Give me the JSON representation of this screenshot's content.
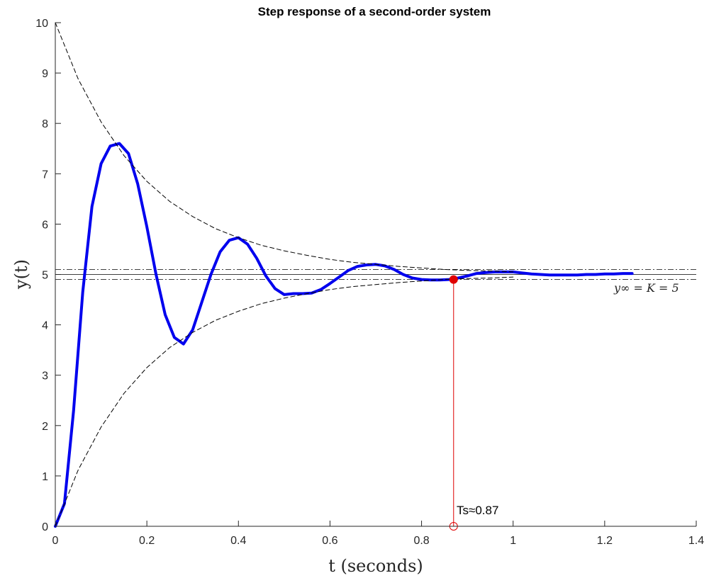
{
  "chart_data": {
    "type": "line",
    "title": "Step response of a second-order system",
    "xlabel": "t (seconds)",
    "ylabel": "y(t)",
    "xlim": [
      0,
      1.4
    ],
    "ylim": [
      0,
      10
    ],
    "xticks": [
      0,
      0.2,
      0.4,
      0.6,
      0.8,
      1,
      1.2,
      1.4
    ],
    "xtick_labels": [
      "0",
      "0.2",
      "0.4",
      "0.6",
      "0.8",
      "1",
      "1.2",
      "1.4"
    ],
    "yticks": [
      0,
      1,
      2,
      3,
      4,
      5,
      6,
      7,
      8,
      9,
      10
    ],
    "ytick_labels": [
      "0",
      "1",
      "2",
      "3",
      "4",
      "5",
      "6",
      "7",
      "8",
      "9",
      "10"
    ],
    "grid": false,
    "series": [
      {
        "style": "solid-thick",
        "color": "#0000ee",
        "x": [
          0,
          0.02,
          0.04,
          0.06,
          0.08,
          0.1,
          0.12,
          0.14,
          0.16,
          0.18,
          0.2,
          0.22,
          0.24,
          0.26,
          0.28,
          0.3,
          0.32,
          0.34,
          0.36,
          0.38,
          0.4,
          0.42,
          0.44,
          0.46,
          0.48,
          0.5,
          0.52,
          0.54,
          0.56,
          0.58,
          0.6,
          0.62,
          0.64,
          0.66,
          0.68,
          0.7,
          0.72,
          0.74,
          0.76,
          0.78,
          0.8,
          0.82,
          0.84,
          0.86,
          0.88,
          0.9,
          0.92,
          0.94,
          0.96,
          0.98,
          1.0,
          1.02,
          1.04,
          1.06,
          1.08,
          1.1,
          1.12,
          1.14,
          1.16,
          1.18,
          1.2,
          1.22,
          1.24,
          1.26
        ],
        "y": [
          0,
          0.45,
          2.3,
          4.65,
          6.35,
          7.2,
          7.55,
          7.6,
          7.4,
          6.8,
          5.95,
          5.0,
          4.2,
          3.75,
          3.62,
          3.9,
          4.45,
          5.0,
          5.45,
          5.68,
          5.73,
          5.6,
          5.32,
          4.97,
          4.72,
          4.6,
          4.62,
          4.62,
          4.63,
          4.7,
          4.82,
          4.95,
          5.08,
          5.16,
          5.19,
          5.2,
          5.17,
          5.1,
          5.0,
          4.93,
          4.9,
          4.89,
          4.89,
          4.9,
          4.93,
          4.97,
          5.02,
          5.04,
          5.05,
          5.05,
          5.05,
          5.03,
          5.01,
          5.0,
          4.99,
          4.99,
          4.99,
          4.99,
          5.0,
          5.0,
          5.01,
          5.01,
          5.02,
          5.02
        ]
      },
      {
        "style": "dashed",
        "color": "#000000",
        "x": [
          0,
          0.05,
          0.1,
          0.15,
          0.2,
          0.25,
          0.3,
          0.35,
          0.4,
          0.45,
          0.5,
          0.55,
          0.6,
          0.65,
          0.7,
          0.75,
          0.8,
          0.85,
          0.9,
          0.95,
          1.0
        ],
        "y": [
          10,
          8.88,
          8.03,
          7.36,
          6.85,
          6.45,
          6.15,
          5.91,
          5.73,
          5.58,
          5.47,
          5.38,
          5.3,
          5.24,
          5.2,
          5.16,
          5.13,
          5.1,
          5.08,
          5.07,
          5.05
        ]
      },
      {
        "style": "dashed",
        "color": "#000000",
        "x": [
          0,
          0.05,
          0.1,
          0.15,
          0.2,
          0.25,
          0.3,
          0.35,
          0.4,
          0.45,
          0.5,
          0.55,
          0.6,
          0.65,
          0.7,
          0.75,
          0.8,
          0.85,
          0.9,
          0.95,
          1.0
        ],
        "y": [
          0,
          1.12,
          1.97,
          2.64,
          3.15,
          3.55,
          3.85,
          4.09,
          4.27,
          4.42,
          4.53,
          4.62,
          4.7,
          4.76,
          4.8,
          4.84,
          4.87,
          4.9,
          4.92,
          4.93,
          4.95
        ]
      }
    ],
    "hlines": [
      {
        "y": 5.1,
        "style": "dashdot"
      },
      {
        "y": 5.0,
        "style": "solid-thin"
      },
      {
        "y": 4.9,
        "style": "dashdot"
      }
    ],
    "settling_marker": {
      "x": 0.87,
      "y": 4.9,
      "color": "#e00000"
    },
    "annotations": {
      "yinf_label": "y∞ = K = 5",
      "ts_label": "Ts≈0.87"
    }
  }
}
